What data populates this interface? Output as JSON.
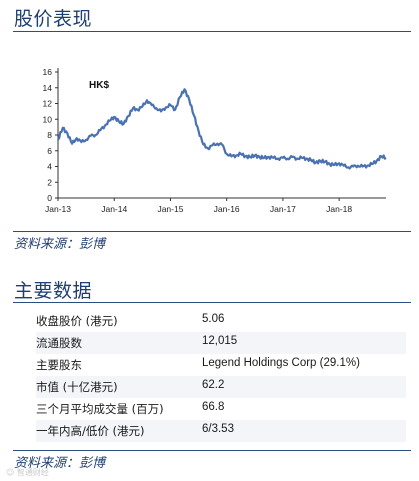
{
  "section1": {
    "title": "股价表现"
  },
  "chart_data": {
    "type": "line",
    "title": "",
    "annotation": "HK$",
    "xlabel": "",
    "ylabel": "",
    "x_ticks": [
      "Jan-13",
      "Jan-14",
      "Jan-15",
      "Jan-16",
      "Jan-17",
      "Jan-18"
    ],
    "y_ticks": [
      0,
      2,
      4,
      6,
      8,
      10,
      12,
      14,
      16
    ],
    "ylim": [
      0,
      16
    ],
    "xlim": [
      "2013-01",
      "2018-11"
    ],
    "grid": false,
    "line_color": "#4a72b0",
    "series": [
      {
        "x": [
          "2013-01",
          "2013-02",
          "2013-03",
          "2013-04",
          "2013-05",
          "2013-06",
          "2013-07",
          "2013-08",
          "2013-09",
          "2013-10",
          "2013-11",
          "2013-12",
          "2014-01",
          "2014-02",
          "2014-03",
          "2014-04",
          "2014-05",
          "2014-06",
          "2014-07",
          "2014-08",
          "2014-09",
          "2014-10",
          "2014-11",
          "2014-12",
          "2015-01",
          "2015-02",
          "2015-03",
          "2015-04",
          "2015-05",
          "2015-06",
          "2015-07",
          "2015-08",
          "2015-09",
          "2015-10",
          "2015-11",
          "2015-12",
          "2016-01",
          "2016-02",
          "2016-03",
          "2016-04",
          "2016-05",
          "2016-06",
          "2016-07",
          "2016-08",
          "2016-09",
          "2016-10",
          "2016-11",
          "2016-12",
          "2017-01",
          "2017-02",
          "2017-03",
          "2017-04",
          "2017-05",
          "2017-06",
          "2017-07",
          "2017-08",
          "2017-09",
          "2017-10",
          "2017-11",
          "2017-12",
          "2018-01",
          "2018-02",
          "2018-03",
          "2018-04",
          "2018-05",
          "2018-06",
          "2018-07",
          "2018-08",
          "2018-09",
          "2018-10",
          "2018-11"
        ],
        "y": [
          7.4,
          8.9,
          8.2,
          6.9,
          7.6,
          7.1,
          7.4,
          7.9,
          8.0,
          8.6,
          9.2,
          9.8,
          10.3,
          9.7,
          9.4,
          10.4,
          11.4,
          11.2,
          11.6,
          12.4,
          11.8,
          11.4,
          11.0,
          11.5,
          11.8,
          11.2,
          12.8,
          13.8,
          12.5,
          10.5,
          8.5,
          6.8,
          6.3,
          6.7,
          6.9,
          6.8,
          5.6,
          5.3,
          5.4,
          5.6,
          5.3,
          5.2,
          5.4,
          5.2,
          5.1,
          5.2,
          5.1,
          5.0,
          5.1,
          5.0,
          5.2,
          5.0,
          5.1,
          5.0,
          4.8,
          4.5,
          4.7,
          4.6,
          4.3,
          4.2,
          4.4,
          4.1,
          3.9,
          4.0,
          4.1,
          4.0,
          4.1,
          4.3,
          4.7,
          5.3,
          5.1
        ]
      }
    ]
  },
  "source_label": "资料来源：彭博",
  "section2": {
    "title": "主要数据",
    "rows": [
      {
        "label": "收盘股价 (港元)",
        "value": "5.06"
      },
      {
        "label": "流通股数",
        "value": "12,015"
      },
      {
        "label": "主要股东",
        "value": "Legend Holdings Corp (29.1%)"
      },
      {
        "label": "市值 (十亿港元)",
        "value": "62.2"
      },
      {
        "label": "三个月平均成交量 (百万)",
        "value": "66.8"
      },
      {
        "label": "一年内高/低价 (港元)",
        "value": "6/3.53"
      }
    ]
  },
  "watermark": "☺ 智通财经"
}
